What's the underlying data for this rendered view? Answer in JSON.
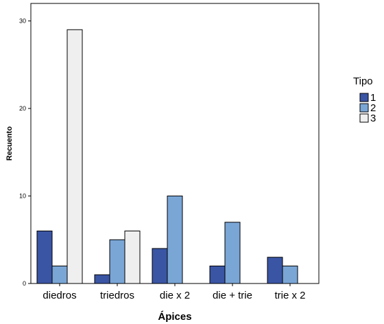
{
  "chart_data": {
    "type": "bar",
    "categories": [
      "diedros",
      "triedros",
      "die x 2",
      "die + trie",
      "trie x 2"
    ],
    "series": [
      {
        "name": "1",
        "values": [
          6,
          1,
          4,
          2,
          3
        ],
        "color": "#3a55a4"
      },
      {
        "name": "2",
        "values": [
          2,
          5,
          10,
          7,
          2
        ],
        "color": "#7aa6d6"
      },
      {
        "name": "3",
        "values": [
          29,
          6,
          0,
          0,
          0
        ],
        "color": "#efefef"
      }
    ],
    "xlabel": "Ápices",
    "ylabel": "Recuento",
    "ylim": [
      0,
      32
    ],
    "yticks": [
      "0",
      "10",
      "20",
      "30"
    ],
    "legend_title": "Tipo",
    "legend_position": "right",
    "grid": false
  }
}
